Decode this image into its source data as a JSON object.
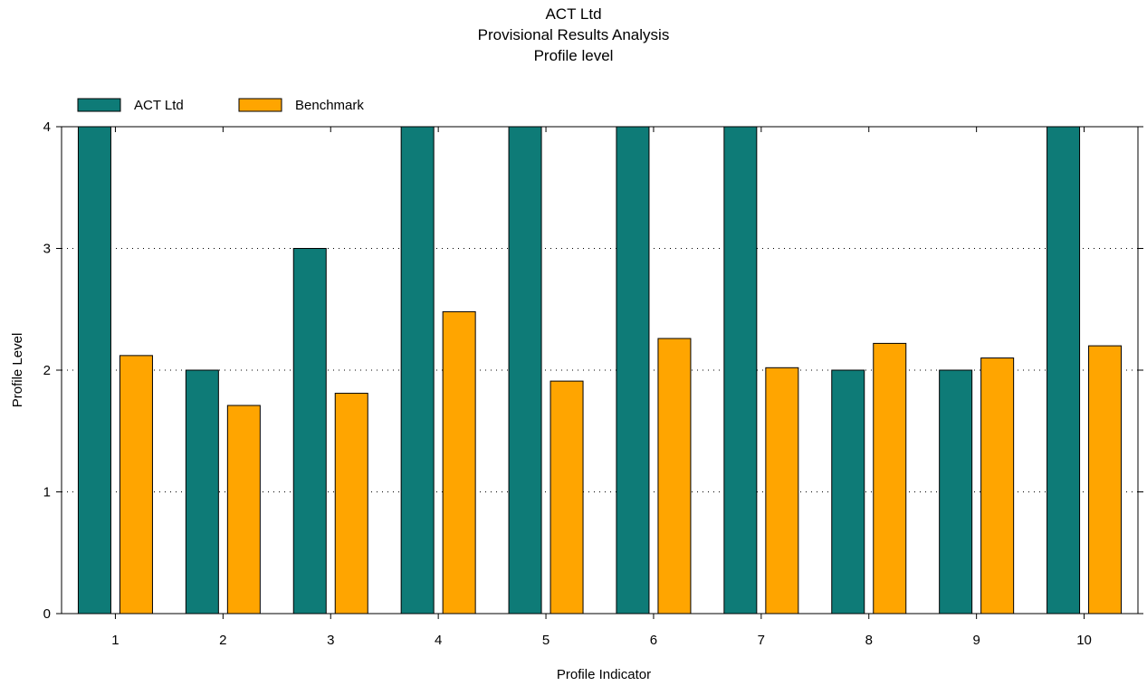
{
  "chart_data": {
    "type": "bar",
    "title_lines": [
      "ACT Ltd",
      "Provisional Results Analysis",
      "Profile level"
    ],
    "xlabel": "Profile Indicator",
    "ylabel": "Profile Level",
    "categories": [
      "1",
      "2",
      "3",
      "4",
      "5",
      "6",
      "7",
      "8",
      "9",
      "10"
    ],
    "series": [
      {
        "name": "ACT Ltd",
        "color": "#0e7b77",
        "values": [
          4,
          2,
          3,
          4,
          4,
          4,
          4,
          2,
          2,
          4
        ]
      },
      {
        "name": "Benchmark",
        "color": "#ffa500",
        "values": [
          2.12,
          1.71,
          1.81,
          2.48,
          1.91,
          2.26,
          2.02,
          2.22,
          2.1,
          2.2
        ]
      }
    ],
    "ylim": [
      0,
      4
    ],
    "yticks": [
      "0",
      "1",
      "2",
      "3",
      "4"
    ],
    "grid": "horizontal dotted",
    "legend_position": "top-left"
  }
}
